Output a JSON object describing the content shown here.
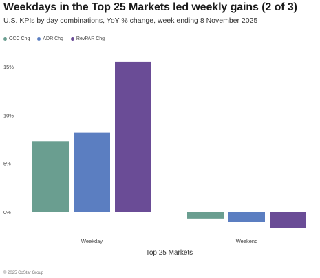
{
  "title": "Weekdays in the Top 25 Markets led weekly gains (2 of 3)",
  "subtitle": "U.S. KPIs by day combinations, YoY % change, week ending 8 November 2025",
  "footer": "© 2025 CoStar Group",
  "colors": {
    "occ": "#6a9e90",
    "adr": "#5b7ec1",
    "revpar": "#6a4c96"
  },
  "chart_data": {
    "type": "bar",
    "categories": [
      "Weekday",
      "Weekend"
    ],
    "xlabel": "Top 25 Markets",
    "ylabel": "",
    "ylim": [
      -1.8,
      16.5
    ],
    "yticks": [
      0,
      5,
      10,
      15
    ],
    "ytick_labels": [
      "0%",
      "5%",
      "10%",
      "15%"
    ],
    "grid": false,
    "legend_position": "top-left",
    "series": [
      {
        "name": "OCC Chg",
        "color": "#6a9e90",
        "values": [
          7.3,
          -0.7
        ]
      },
      {
        "name": "ADR Chg",
        "color": "#5b7ec1",
        "values": [
          8.2,
          -1.0
        ]
      },
      {
        "name": "RevPAR Chg",
        "color": "#6a4c96",
        "values": [
          15.5,
          -1.7
        ]
      }
    ]
  }
}
